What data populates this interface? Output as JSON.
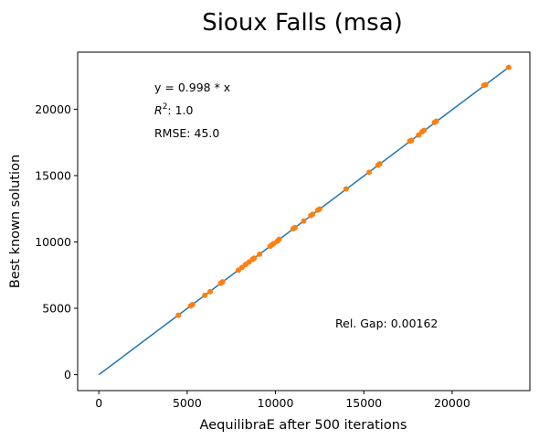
{
  "chart_data": {
    "type": "scatter",
    "title": "Sioux Falls (msa)",
    "xlabel": "AequilibraE after 500 iterations",
    "ylabel": "Best known solution",
    "xlim": [
      -1200,
      24400
    ],
    "ylim": [
      -1200,
      24300
    ],
    "xticks": [
      0,
      5000,
      10000,
      15000,
      20000
    ],
    "yticks": [
      0,
      5000,
      10000,
      15000,
      20000
    ],
    "xtick_labels": [
      "0",
      "5000",
      "10000",
      "15000",
      "20000"
    ],
    "ytick_labels": [
      "0",
      "5000",
      "10000",
      "15000",
      "20000"
    ],
    "grid": false,
    "fit_line": {
      "slope": 0.998,
      "x": [
        0,
        23200
      ],
      "color": "#1f77b4"
    },
    "annotations": {
      "equation": "y = 0.998 * x",
      "r2_label": "R",
      "r2_sup": "2",
      "r2_rest": ":  1.0",
      "rmse": "RMSE: 45.0",
      "gap": "Rel. Gap: 0.00162"
    },
    "series": [
      {
        "color": "#ff7f0e",
        "points": [
          [
            4500,
            4480
          ],
          [
            5200,
            5180
          ],
          [
            5300,
            5280
          ],
          [
            6000,
            5980
          ],
          [
            6300,
            6250
          ],
          [
            6900,
            6880
          ],
          [
            7000,
            6990
          ],
          [
            7900,
            7870
          ],
          [
            8100,
            8080
          ],
          [
            8300,
            8300
          ],
          [
            8500,
            8480
          ],
          [
            8700,
            8700
          ],
          [
            8800,
            8780
          ],
          [
            9100,
            9080
          ],
          [
            9700,
            9680
          ],
          [
            9800,
            9780
          ],
          [
            9900,
            9880
          ],
          [
            10100,
            10050
          ],
          [
            10200,
            10200
          ],
          [
            11000,
            11000
          ],
          [
            11100,
            11080
          ],
          [
            11600,
            11580
          ],
          [
            12000,
            11990
          ],
          [
            12100,
            12080
          ],
          [
            12400,
            12400
          ],
          [
            12500,
            12480
          ],
          [
            14000,
            14000
          ],
          [
            15300,
            15250
          ],
          [
            15800,
            15780
          ],
          [
            15900,
            15880
          ],
          [
            17600,
            17600
          ],
          [
            17700,
            17650
          ],
          [
            18100,
            18050
          ],
          [
            18300,
            18300
          ],
          [
            18400,
            18400
          ],
          [
            19000,
            19000
          ],
          [
            19100,
            19100
          ],
          [
            21800,
            21800
          ],
          [
            21900,
            21850
          ],
          [
            23200,
            23150
          ]
        ]
      }
    ]
  }
}
